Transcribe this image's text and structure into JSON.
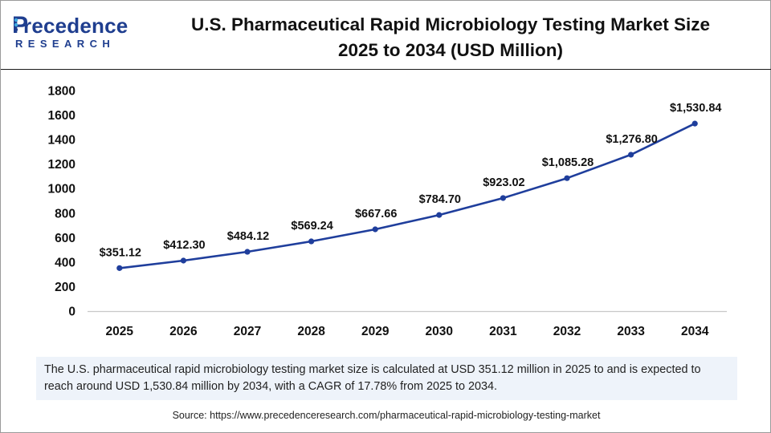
{
  "logo": {
    "letter": "P",
    "word": "recedence",
    "sub": "RESEARCH"
  },
  "header": {
    "title_line1": "U.S. Pharmaceutical Rapid Microbiology Testing Market Size",
    "title_line2": "2025 to 2034 (USD Million)"
  },
  "chart_data": {
    "type": "line",
    "title": "U.S. Pharmaceutical Rapid Microbiology Testing Market Size 2025 to 2034 (USD Million)",
    "xlabel": "",
    "ylabel": "",
    "categories": [
      "2025",
      "2026",
      "2027",
      "2028",
      "2029",
      "2030",
      "2031",
      "2032",
      "2033",
      "2034"
    ],
    "values": [
      351.12,
      412.3,
      484.12,
      569.24,
      667.66,
      784.7,
      923.02,
      1085.28,
      1276.8,
      1530.84
    ],
    "data_labels": [
      "$351.12",
      "$412.30",
      "$484.12",
      "$569.24",
      "$667.66",
      "$784.70",
      "$923.02",
      "$1,085.28",
      "$1,276.80",
      "$1,530.84"
    ],
    "yticks": [
      0,
      200,
      400,
      600,
      800,
      1000,
      1200,
      1400,
      1600,
      1800
    ],
    "ylim": [
      0,
      1800
    ],
    "grid": false,
    "legend": "none",
    "line_color": "#1f3e9c"
  },
  "description": "The U.S. pharmaceutical rapid microbiology testing market size is calculated at USD 351.12 million in 2025 to and is expected to reach around USD 1,530.84 million by 2034, with a CAGR of 17.78% from 2025 to 2034.",
  "source": "Source: https://www.precedenceresearch.com/pharmaceutical-rapid-microbiology-testing-market",
  "colors": {
    "brand": "#1f3e8f",
    "accent": "#3fa9e0",
    "box_bg": "#eef3fa"
  }
}
